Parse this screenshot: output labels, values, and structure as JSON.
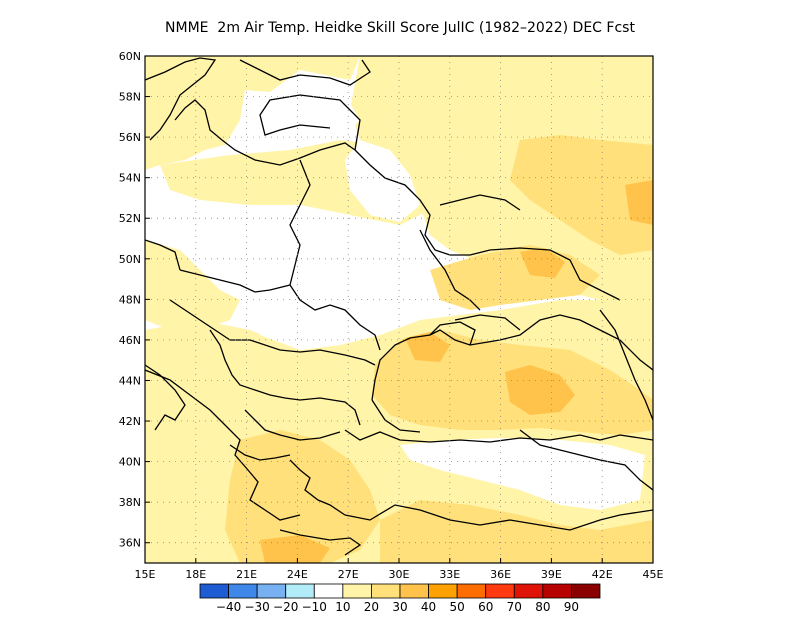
{
  "title": "NMME  2m Air Temp. Heidke Skill Score JulIC (1982–2022) DEC Fcst",
  "map": {
    "lon_range": [
      15,
      45
    ],
    "lat_range": [
      35,
      60
    ],
    "lon_ticks": [
      "15E",
      "18E",
      "21E",
      "24E",
      "27E",
      "30E",
      "33E",
      "36E",
      "39E",
      "42E",
      "45E"
    ],
    "lat_ticks": [
      "36N",
      "38N",
      "40N",
      "42N",
      "44N",
      "46N",
      "48N",
      "50N",
      "52N",
      "54N",
      "56N",
      "58N",
      "60N"
    ],
    "grid": "dotted",
    "border_color": "#000000",
    "shading_colors": {
      "10_20": "#fff4a8",
      "20_30": "#ffe07a",
      "30_40": "#ffc24a",
      "negative_10_20": "#aee6f5"
    }
  },
  "colorbar": {
    "colors": [
      "#1e5cd4",
      "#3f87e8",
      "#77b1f2",
      "#b2ecf8",
      "#ffffff",
      "#fff4a8",
      "#ffe07a",
      "#ffc24a",
      "#ffa100",
      "#ff6c00",
      "#ff3a10",
      "#e01308",
      "#b70000",
      "#8a0000"
    ],
    "labels": [
      "−40",
      "−30",
      "−20",
      "−10",
      "10",
      "20",
      "30",
      "40",
      "50",
      "60",
      "70",
      "80",
      "90"
    ]
  }
}
